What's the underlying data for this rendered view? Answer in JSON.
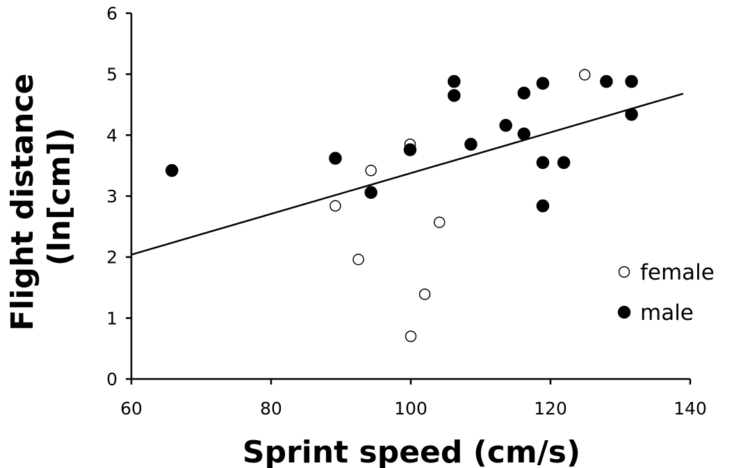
{
  "chart_data": {
    "type": "scatter",
    "title": "",
    "xlabel": "Sprint speed (cm/s)",
    "ylabel_lines": [
      "Flight distance",
      "(ln[cm])"
    ],
    "xlim": [
      60,
      140
    ],
    "ylim": [
      0,
      6
    ],
    "x_ticks": [
      60,
      80,
      100,
      120,
      140
    ],
    "y_ticks": [
      0,
      1,
      2,
      3,
      4,
      5,
      6
    ],
    "grid": false,
    "legend_position": "right",
    "series": [
      {
        "name": "female",
        "marker": "open-circle",
        "color": "#000000",
        "points": [
          [
            89.2,
            2.84
          ],
          [
            92.5,
            1.96
          ],
          [
            94.3,
            3.42
          ],
          [
            99.9,
            3.85
          ],
          [
            100.0,
            0.7
          ],
          [
            102.0,
            1.39
          ],
          [
            104.1,
            2.57
          ],
          [
            124.9,
            4.99
          ]
        ]
      },
      {
        "name": "male",
        "marker": "filled-circle",
        "color": "#000000",
        "points": [
          [
            65.8,
            3.42
          ],
          [
            89.2,
            3.62
          ],
          [
            94.3,
            3.06
          ],
          [
            99.9,
            3.76
          ],
          [
            106.2,
            4.88
          ],
          [
            106.2,
            4.65
          ],
          [
            108.6,
            3.85
          ],
          [
            113.6,
            4.16
          ],
          [
            116.2,
            4.69
          ],
          [
            116.2,
            4.02
          ],
          [
            118.9,
            4.85
          ],
          [
            118.9,
            3.55
          ],
          [
            118.9,
            2.84
          ],
          [
            121.9,
            3.55
          ],
          [
            128.0,
            4.88
          ],
          [
            131.6,
            4.88
          ],
          [
            131.6,
            4.34
          ]
        ]
      }
    ],
    "trendline": {
      "color": "#000000",
      "x": [
        60,
        139
      ],
      "y": [
        2.04,
        4.68
      ]
    }
  }
}
